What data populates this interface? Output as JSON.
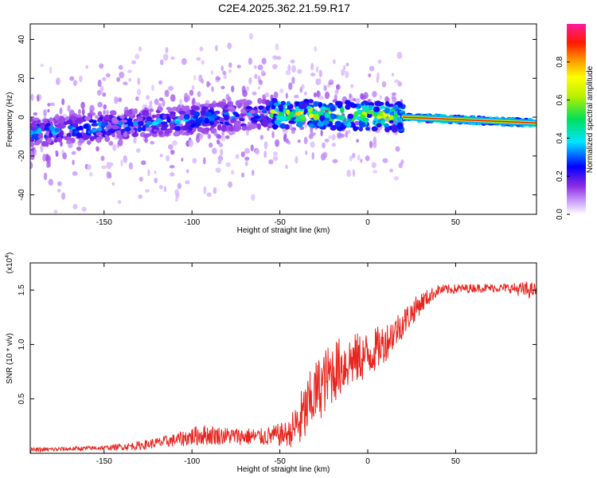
{
  "title": "C2E4.2025.362.21.59.R17",
  "chart_data": [
    {
      "type": "heatmap",
      "name": "spectrogram",
      "xlabel": "Height of straight line (km)",
      "ylabel": "Frequency (Hz)",
      "xlim": [
        -192,
        96
      ],
      "ylim": [
        -50,
        48
      ],
      "xticks": [
        -150,
        -100,
        -50,
        0,
        50
      ],
      "yticks": [
        -40,
        -20,
        0,
        20,
        40
      ],
      "colorbar": {
        "label": "Normalized spectral amplitude",
        "range": [
          0,
          1
        ],
        "ticks": [
          "0.0",
          "0.2",
          "0.4",
          "0.6",
          "0.8"
        ],
        "tick_values": [
          0,
          0.2,
          0.4,
          0.6,
          0.8
        ]
      },
      "features": [
        {
          "x_range": [
            -192,
            -55
          ],
          "freq_start": -8,
          "freq_end": 2,
          "peak_amplitude": 0.4,
          "scatter_spread_hz": 45
        },
        {
          "x_range": [
            -55,
            20
          ],
          "freq_start": 2,
          "freq_end": 0,
          "peak_amplitude": 0.8,
          "scatter_spread_hz": 35
        },
        {
          "x_range": [
            20,
            96
          ],
          "freq_start": 0,
          "freq_end": -3,
          "peak_amplitude": 0.9,
          "scatter_spread_hz": 3
        }
      ]
    },
    {
      "type": "line",
      "name": "snr",
      "xlabel": "Height of straight line (km)",
      "ylabel": "SNR (10 * v/v)",
      "y_multiplier": "(x10",
      "y_multiplier_exp": "4",
      "y_multiplier_close": ")",
      "xlim": [
        -192,
        96
      ],
      "ylim": [
        0,
        1.75
      ],
      "xticks": [
        -150,
        -100,
        -50,
        0,
        50
      ],
      "yticks": [
        0.5,
        1.0,
        1.5
      ],
      "ytick_labels": [
        "0.5",
        "1.0",
        "1.5"
      ],
      "color": "#e8261e",
      "series": [
        {
          "name": "SNR",
          "x": [
            -192,
            -150,
            -130,
            -110,
            -95,
            -80,
            -60,
            -45,
            -38,
            -30,
            -20,
            -10,
            0,
            10,
            20,
            30,
            40,
            60,
            80,
            90,
            96
          ],
          "y": [
            0.03,
            0.05,
            0.07,
            0.12,
            0.17,
            0.16,
            0.15,
            0.18,
            0.3,
            0.55,
            0.75,
            0.85,
            0.9,
            1.02,
            1.2,
            1.38,
            1.5,
            1.52,
            1.52,
            1.5,
            1.5
          ],
          "noise": [
            0.02,
            0.02,
            0.04,
            0.06,
            0.1,
            0.08,
            0.08,
            0.12,
            0.28,
            0.3,
            0.3,
            0.25,
            0.22,
            0.18,
            0.14,
            0.1,
            0.05,
            0.04,
            0.04,
            0.08,
            0.06
          ]
        }
      ]
    }
  ]
}
